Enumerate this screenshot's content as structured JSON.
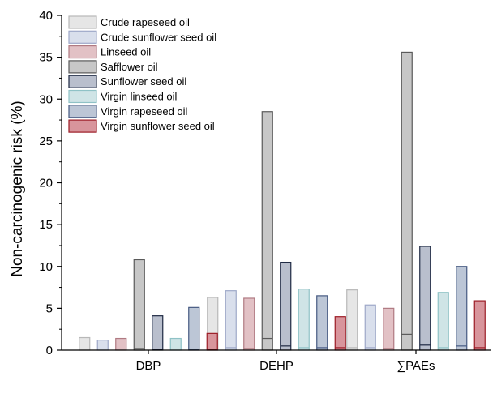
{
  "chart_data": {
    "type": "bar",
    "ylabel": "Non-carcinogenic risk (%)",
    "xlabel": "",
    "ylim": [
      0,
      40
    ],
    "yticks": [
      0,
      5,
      10,
      15,
      20,
      25,
      30,
      35,
      40
    ],
    "categories": [
      "DBP",
      "DEHP",
      "∑PAEs"
    ],
    "legend_position": "top-left",
    "series": [
      {
        "name": "Crude rapeseed oil",
        "fill": "#e6e6e6",
        "stroke": "#b8b8b8",
        "values": [
          1.5,
          6.3,
          7.2
        ],
        "low": [
          0.0,
          0.3,
          0.3
        ]
      },
      {
        "name": "Crude sunflower seed oil",
        "fill": "#d9dfec",
        "stroke": "#9ea8c8",
        "values": [
          1.2,
          7.1,
          5.4
        ],
        "low": [
          0.0,
          0.3,
          0.3
        ]
      },
      {
        "name": "Linseed oil",
        "fill": "#e2c1c5",
        "stroke": "#b07a82",
        "values": [
          1.4,
          6.2,
          5.0
        ],
        "low": [
          0.0,
          0.2,
          0.2
        ]
      },
      {
        "name": "Safflower oil",
        "fill": "#c7c7c7",
        "stroke": "#5a5a5a",
        "values": [
          10.8,
          28.5,
          35.6
        ],
        "low": [
          0.2,
          1.4,
          1.9
        ]
      },
      {
        "name": "Sunflower seed oil",
        "fill": "#b9bfcd",
        "stroke": "#1f2a44",
        "values": [
          4.1,
          10.5,
          12.4
        ],
        "low": [
          0.1,
          0.5,
          0.6
        ]
      },
      {
        "name": "Virgin linseed oil",
        "fill": "#cfe4e6",
        "stroke": "#8fc2c6",
        "values": [
          1.4,
          7.3,
          6.9
        ],
        "low": [
          0.0,
          0.3,
          0.3
        ]
      },
      {
        "name": "Virgin rapeseed oil",
        "fill": "#bcc6d6",
        "stroke": "#465a82",
        "values": [
          5.1,
          6.5,
          10.0
        ],
        "low": [
          0.1,
          0.3,
          0.5
        ]
      },
      {
        "name": "Virgin sunflower seed oil",
        "fill": "#d8959c",
        "stroke": "#9c1c26",
        "values": [
          2.0,
          4.0,
          5.9
        ],
        "low": [
          0.1,
          0.3,
          0.3
        ]
      }
    ]
  }
}
